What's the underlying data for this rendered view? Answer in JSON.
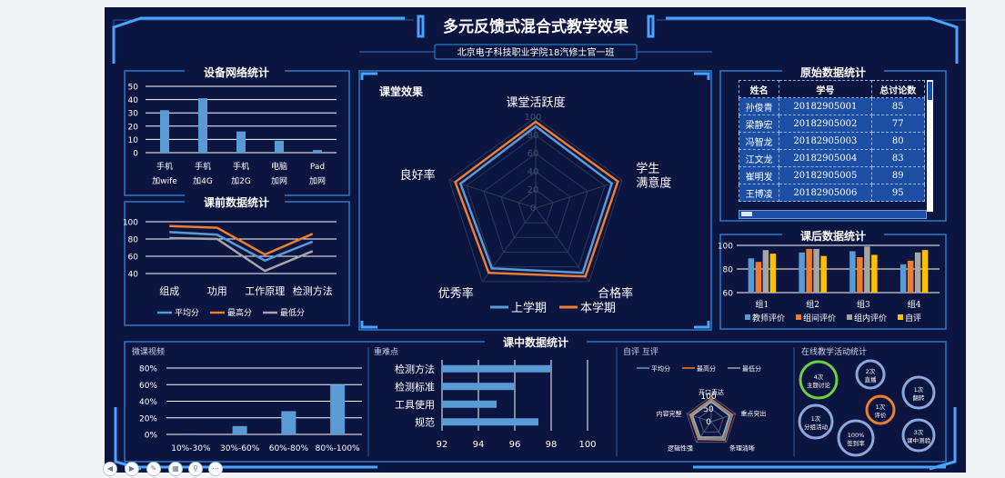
{
  "header": {
    "title": "多元反馈式混合式教学效果",
    "subtitle": "北京电子科技职业学院18汽修士官一班"
  },
  "panels": {
    "device": "设备网络统计",
    "pre": "课前数据统计",
    "classroom": "课堂效果",
    "raw": "原始数据统计",
    "post": "课后数据统计",
    "inclass": "课中数据统计",
    "video": "微课视频",
    "difficulty": "重难点",
    "eval": "自评  互评",
    "online": "在线教学活动统计"
  },
  "colors": {
    "bg": "#0b1540",
    "frame": "#2e79c9",
    "blue": "#5b9bd5",
    "orange": "#ed7d31",
    "gray": "#a5a5a5",
    "yellow": "#ffc000"
  },
  "chart_data": [
    {
      "id": "device",
      "type": "bar",
      "title": "设备网络统计",
      "categories": [
        [
          "手机",
          "加wife"
        ],
        [
          "手机",
          "加4G"
        ],
        [
          "手机",
          "加2G"
        ],
        [
          "电脑",
          "加网"
        ],
        [
          "Pad",
          "加网"
        ]
      ],
      "values": [
        32,
        41,
        16,
        9,
        2
      ],
      "yticks": [
        "0",
        "10",
        "20",
        "30",
        "40",
        "50"
      ],
      "ylim": [
        0,
        50
      ]
    },
    {
      "id": "pre",
      "type": "line",
      "title": "课前数据统计",
      "categories": [
        "组成",
        "功用",
        "工作原理",
        "检测方法"
      ],
      "yticks": [
        "40",
        "60",
        "80",
        "100"
      ],
      "ylim": [
        40,
        100
      ],
      "series": [
        {
          "name": "平均分",
          "color": "#5b9bd5",
          "values": [
            88,
            85,
            55,
            77
          ]
        },
        {
          "name": "最高分",
          "color": "#ed7d31",
          "values": [
            95,
            93,
            62,
            86
          ]
        },
        {
          "name": "最低分",
          "color": "#a5a5a5",
          "values": [
            81,
            80,
            43,
            66
          ]
        }
      ]
    },
    {
      "id": "classroom",
      "type": "radar",
      "title": "课堂效果",
      "axes": [
        "课堂活跃度",
        "学生\n满意度",
        "合格率",
        "优秀率",
        "良好率"
      ],
      "rticks": [
        "0",
        "20",
        "40",
        "60",
        "80",
        "100"
      ],
      "rlim": [
        0,
        100
      ],
      "series": [
        {
          "name": "上学期",
          "color": "#5b9bd5",
          "values": [
            90,
            88,
            88,
            82,
            87
          ]
        },
        {
          "name": "本学期",
          "color": "#ed7d31",
          "values": [
            95,
            95,
            93,
            88,
            93
          ]
        }
      ]
    },
    {
      "id": "raw",
      "type": "table",
      "title": "原始数据统计",
      "columns": [
        "姓名",
        "学号",
        "总讨论数"
      ],
      "rows": [
        [
          "孙俊青",
          "20182905001",
          "85"
        ],
        [
          "梁静宏",
          "20182905002",
          "77"
        ],
        [
          "冯智龙",
          "20182905003",
          "80"
        ],
        [
          "江文龙",
          "20182905004",
          "83"
        ],
        [
          "崔明发",
          "20182905005",
          "89"
        ],
        [
          "王博凌",
          "20182905006",
          "95"
        ]
      ]
    },
    {
      "id": "post",
      "type": "bar",
      "title": "课后数据统计",
      "categories": [
        "组1",
        "组2",
        "组3",
        "组4"
      ],
      "yticks": [
        "60",
        "80",
        "100"
      ],
      "ylim": [
        60,
        100
      ],
      "series": [
        {
          "name": "教师评价",
          "color": "#5b9bd5",
          "values": [
            89,
            94,
            95,
            84
          ]
        },
        {
          "name": "组间评价",
          "color": "#ed7d31",
          "values": [
            86,
            97,
            90,
            87
          ]
        },
        {
          "name": "组内评价",
          "color": "#a5a5a5",
          "values": [
            96,
            97,
            99,
            94
          ]
        },
        {
          "name": "自评",
          "color": "#ffc000",
          "values": [
            93,
            91,
            92,
            96
          ]
        }
      ]
    },
    {
      "id": "video",
      "type": "bar",
      "title": "微课视频",
      "categories": [
        "10%-30%",
        "30%-60%",
        "60%-80%",
        "80%-100%"
      ],
      "values": [
        1,
        10,
        28,
        60
      ],
      "yticks": [
        "0%",
        "20%",
        "40%",
        "60%",
        "80%"
      ],
      "ylim": [
        0,
        80
      ]
    },
    {
      "id": "difficulty",
      "type": "bar",
      "title": "重难点",
      "categories": [
        "检测方法",
        "检测标准",
        "工具使用",
        "规范"
      ],
      "values": [
        98,
        96,
        95,
        97.3
      ],
      "xticks": [
        "92",
        "94",
        "96",
        "98",
        "100"
      ],
      "xlim": [
        92,
        100
      ]
    },
    {
      "id": "eval",
      "type": "radar",
      "title": "自评  互评",
      "axes": [
        "开口表达",
        "重点突出",
        "条理清晰",
        "逻辑性强",
        "内容完整"
      ],
      "rticks": [
        "0",
        "50",
        "100"
      ],
      "rlim": [
        0,
        100
      ],
      "series": [
        {
          "name": "平均分",
          "color": "#5b9bd5",
          "values": [
            83,
            80,
            82,
            80,
            82
          ]
        },
        {
          "name": "最高分",
          "color": "#ed7d31",
          "values": [
            90,
            88,
            90,
            86,
            88
          ]
        },
        {
          "name": "最低分",
          "color": "#a5a5a5",
          "values": [
            77,
            75,
            75,
            74,
            77
          ]
        }
      ]
    },
    {
      "id": "online",
      "type": "bubble",
      "title": "在线教学活动统计",
      "items": [
        {
          "lines": [
            "4次",
            "主题讨论"
          ],
          "color": "#6fce3f"
        },
        {
          "lines": [
            "2次",
            "直播"
          ],
          "color": "#8ea7d9"
        },
        {
          "lines": [
            "1次",
            "翻转"
          ],
          "color": "#8ea7d9"
        },
        {
          "lines": [
            "1次",
            "评价"
          ],
          "color": "#ed7d31"
        },
        {
          "lines": [
            "1次",
            "分组活动"
          ],
          "color": "#8ea7d9"
        },
        {
          "lines": [
            "100%",
            "签到率"
          ],
          "color": "#8ea7d9"
        },
        {
          "lines": [
            "3次",
            "课中测验"
          ],
          "color": "#8ea7d9"
        }
      ]
    }
  ]
}
